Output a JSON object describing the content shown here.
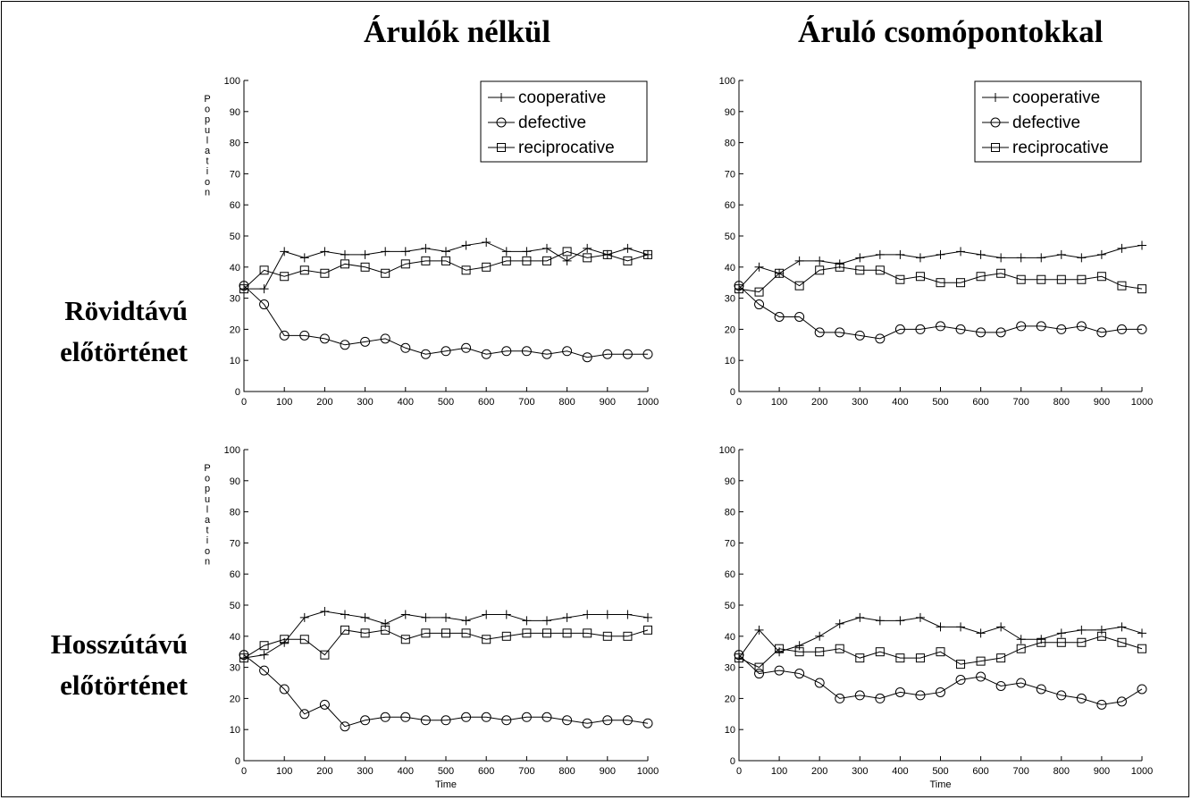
{
  "columns": [
    "Árulók nélkül",
    "Áruló csomópontokkal"
  ],
  "rows": [
    [
      "Rövidtávú",
      "előtörténet"
    ],
    [
      "Hosszútávú",
      "előtörténet"
    ]
  ],
  "chart_data": [
    {
      "type": "line",
      "ylabel": "Population",
      "xlabel": "",
      "xlim": [
        0,
        1000
      ],
      "ylim": [
        0,
        100
      ],
      "xticks": [
        0,
        100,
        200,
        300,
        400,
        500,
        600,
        700,
        800,
        900,
        1000
      ],
      "yticks": [
        0,
        10,
        20,
        30,
        40,
        50,
        60,
        70,
        80,
        90,
        100
      ],
      "legend": "top-right",
      "x": [
        0,
        50,
        100,
        150,
        200,
        250,
        300,
        350,
        400,
        450,
        500,
        550,
        600,
        650,
        700,
        750,
        800,
        850,
        900,
        950,
        1000
      ],
      "series": [
        {
          "name": "cooperative",
          "marker": "plus",
          "values": [
            33,
            33,
            45,
            43,
            45,
            44,
            44,
            45,
            45,
            46,
            45,
            47,
            48,
            45,
            45,
            46,
            42,
            46,
            44,
            46,
            44
          ]
        },
        {
          "name": "defective",
          "marker": "circle",
          "values": [
            34,
            28,
            18,
            18,
            17,
            15,
            16,
            17,
            14,
            12,
            13,
            14,
            12,
            13,
            13,
            12,
            13,
            11,
            12,
            12,
            12
          ]
        },
        {
          "name": "reciprocative",
          "marker": "square",
          "values": [
            33,
            39,
            37,
            39,
            38,
            41,
            40,
            38,
            41,
            42,
            42,
            39,
            40,
            42,
            42,
            42,
            45,
            43,
            44,
            42,
            44
          ]
        }
      ]
    },
    {
      "type": "line",
      "ylabel": "",
      "xlabel": "",
      "xlim": [
        0,
        1000
      ],
      "ylim": [
        0,
        100
      ],
      "xticks": [
        0,
        100,
        200,
        300,
        400,
        500,
        600,
        700,
        800,
        900,
        1000
      ],
      "yticks": [
        0,
        10,
        20,
        30,
        40,
        50,
        60,
        70,
        80,
        90,
        100
      ],
      "legend": "top-right",
      "x": [
        0,
        50,
        100,
        150,
        200,
        250,
        300,
        350,
        400,
        450,
        500,
        550,
        600,
        650,
        700,
        750,
        800,
        850,
        900,
        950,
        1000
      ],
      "series": [
        {
          "name": "cooperative",
          "marker": "plus",
          "values": [
            33,
            40,
            38,
            42,
            42,
            41,
            43,
            44,
            44,
            43,
            44,
            45,
            44,
            43,
            43,
            43,
            44,
            43,
            44,
            46,
            47
          ]
        },
        {
          "name": "defective",
          "marker": "circle",
          "values": [
            34,
            28,
            24,
            24,
            19,
            19,
            18,
            17,
            20,
            20,
            21,
            20,
            19,
            19,
            21,
            21,
            20,
            21,
            19,
            20,
            20
          ]
        },
        {
          "name": "reciprocative",
          "marker": "square",
          "values": [
            33,
            32,
            38,
            34,
            39,
            40,
            39,
            39,
            36,
            37,
            35,
            35,
            37,
            38,
            36,
            36,
            36,
            36,
            37,
            34,
            33
          ]
        }
      ]
    },
    {
      "type": "line",
      "ylabel": "Population",
      "xlabel": "Time",
      "xlim": [
        0,
        1000
      ],
      "ylim": [
        0,
        100
      ],
      "xticks": [
        0,
        100,
        200,
        300,
        400,
        500,
        600,
        700,
        800,
        900,
        1000
      ],
      "yticks": [
        0,
        10,
        20,
        30,
        40,
        50,
        60,
        70,
        80,
        90,
        100
      ],
      "legend": "",
      "x": [
        0,
        50,
        100,
        150,
        200,
        250,
        300,
        350,
        400,
        450,
        500,
        550,
        600,
        650,
        700,
        750,
        800,
        850,
        900,
        950,
        1000
      ],
      "series": [
        {
          "marker": "plus",
          "values": [
            33,
            34,
            38,
            46,
            48,
            47,
            46,
            44,
            47,
            46,
            46,
            45,
            47,
            47,
            45,
            45,
            46,
            47,
            47,
            47,
            46
          ]
        },
        {
          "marker": "circle",
          "values": [
            34,
            29,
            23,
            15,
            18,
            11,
            13,
            14,
            14,
            13,
            13,
            14,
            14,
            13,
            14,
            14,
            13,
            12,
            13,
            13,
            12
          ]
        },
        {
          "marker": "square",
          "values": [
            33,
            37,
            39,
            39,
            34,
            42,
            41,
            42,
            39,
            41,
            41,
            41,
            39,
            40,
            41,
            41,
            41,
            41,
            40,
            40,
            42
          ]
        }
      ]
    },
    {
      "type": "line",
      "ylabel": "",
      "xlabel": "Time",
      "xlim": [
        0,
        1000
      ],
      "ylim": [
        0,
        100
      ],
      "xticks": [
        0,
        100,
        200,
        300,
        400,
        500,
        600,
        700,
        800,
        900,
        1000
      ],
      "yticks": [
        0,
        10,
        20,
        30,
        40,
        50,
        60,
        70,
        80,
        90,
        100
      ],
      "legend": "",
      "x": [
        0,
        50,
        100,
        150,
        200,
        250,
        300,
        350,
        400,
        450,
        500,
        550,
        600,
        650,
        700,
        750,
        800,
        850,
        900,
        950,
        1000
      ],
      "series": [
        {
          "marker": "plus",
          "values": [
            33,
            42,
            35,
            37,
            40,
            44,
            46,
            45,
            45,
            46,
            43,
            43,
            41,
            43,
            39,
            39,
            41,
            42,
            42,
            43,
            41
          ]
        },
        {
          "marker": "circle",
          "values": [
            34,
            28,
            29,
            28,
            25,
            20,
            21,
            20,
            22,
            21,
            22,
            26,
            27,
            24,
            25,
            23,
            21,
            20,
            18,
            19,
            23
          ]
        },
        {
          "marker": "square",
          "values": [
            33,
            30,
            36,
            35,
            35,
            36,
            33,
            35,
            33,
            33,
            35,
            31,
            32,
            33,
            36,
            38,
            38,
            38,
            40,
            38,
            36
          ]
        }
      ]
    }
  ]
}
